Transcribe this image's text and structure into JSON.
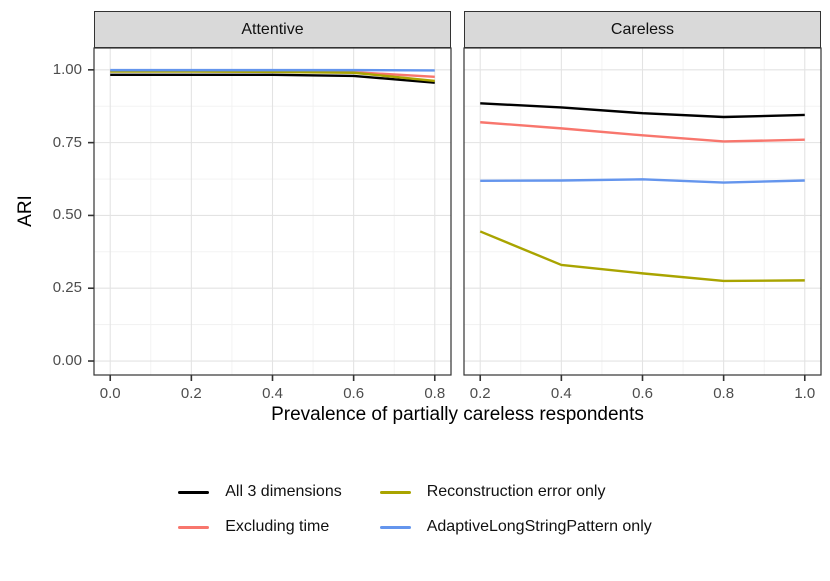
{
  "chart_data": {
    "type": "line",
    "title": "",
    "xlabel": "Prevalence of partially careless respondents",
    "ylabel": "ARI",
    "ylim": [
      -0.048,
      1.075
    ],
    "y_ticks": [
      0.0,
      0.25,
      0.5,
      0.75,
      1.0
    ],
    "y_tick_labels": [
      "0.00",
      "0.25",
      "0.50",
      "0.75",
      "1.00"
    ],
    "grid": "on",
    "legend_position": "bottom",
    "facets": [
      {
        "label": "Attentive",
        "x": [
          0.0,
          0.2,
          0.4,
          0.6,
          0.8
        ],
        "x_tick_labels": [
          "0.0",
          "0.2",
          "0.4",
          "0.6",
          "0.8"
        ],
        "series": [
          {
            "name": "All 3 dimensions",
            "color": "#000000",
            "values": [
              0.983,
              0.983,
              0.983,
              0.979,
              0.956
            ]
          },
          {
            "name": "Excluding time",
            "color": "#F8766D",
            "values": [
              0.995,
              0.995,
              0.994,
              0.992,
              0.976
            ]
          },
          {
            "name": "Reconstruction error only",
            "color": "#A9A400",
            "values": [
              0.994,
              0.994,
              0.993,
              0.99,
              0.962
            ]
          },
          {
            "name": "AdaptiveLongStringPattern only",
            "color": "#6495ED",
            "values": [
              0.999,
              0.999,
              0.999,
              0.999,
              0.998
            ]
          }
        ]
      },
      {
        "label": "Careless",
        "x": [
          0.2,
          0.4,
          0.6,
          0.8,
          1.0
        ],
        "x_tick_labels": [
          "0.2",
          "0.4",
          "0.6",
          "0.8",
          "1.0"
        ],
        "series": [
          {
            "name": "All 3 dimensions",
            "color": "#000000",
            "values": [
              0.885,
              0.871,
              0.851,
              0.838,
              0.845
            ]
          },
          {
            "name": "Excluding time",
            "color": "#F8766D",
            "values": [
              0.82,
              0.799,
              0.775,
              0.754,
              0.76
            ]
          },
          {
            "name": "Reconstruction error only",
            "color": "#A9A400",
            "values": [
              0.445,
              0.33,
              0.301,
              0.275,
              0.277
            ]
          },
          {
            "name": "AdaptiveLongStringPattern only",
            "color": "#6495ED",
            "values": [
              0.619,
              0.62,
              0.624,
              0.613,
              0.62
            ]
          }
        ]
      }
    ]
  },
  "legend": {
    "items": [
      {
        "label": "All 3 dimensions",
        "color": "#000000"
      },
      {
        "label": "Reconstruction error only",
        "color": "#A9A400"
      },
      {
        "label": "Excluding time",
        "color": "#F8766D"
      },
      {
        "label": "AdaptiveLongStringPattern only",
        "color": "#6495ED"
      }
    ]
  },
  "theme": {
    "strip_bg": "#D9D9D9",
    "strip_border": "#333333",
    "panel_border": "#333333",
    "grid_major": "#E3E3E3",
    "grid_minor": "#F1F1F1",
    "tick_color": "#333333",
    "tick_label_color": "#4D4D4D"
  }
}
